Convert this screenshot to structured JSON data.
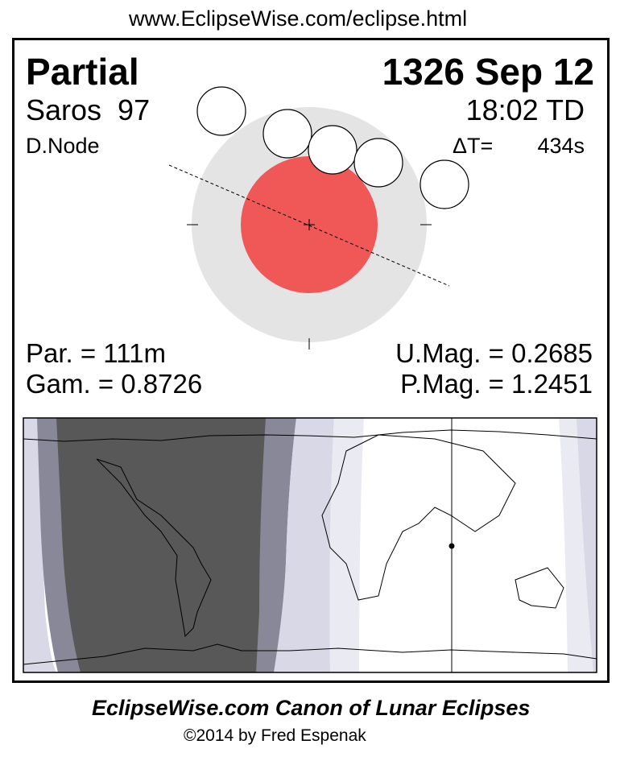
{
  "header_url": "www.EclipseWise.com/eclipse.html",
  "eclipse": {
    "type": "Partial",
    "date": "1326 Sep 12",
    "saros": "Saros  97",
    "time": "18:02 TD",
    "node": "D.Node",
    "delta_t_label": "ΔT=",
    "delta_t_value": "434s"
  },
  "stats": {
    "par": "Par. = 111m",
    "gam": "Gam. = 0.8726",
    "umag": "U.Mag. = 0.2685",
    "pmag": "P.Mag. = 1.2451"
  },
  "colors": {
    "penumbra": "#e4e4e4",
    "umbra": "#f05858",
    "night_dark": "#585858",
    "night_medium": "#888898",
    "penumbral_light": "#d8d8e6",
    "penumbral_lighter": "#eaeaf2"
  },
  "footer": {
    "title": "EclipseWise.com Canon of Lunar Eclipses",
    "copyright": "©2014 by Fred Espenak"
  }
}
